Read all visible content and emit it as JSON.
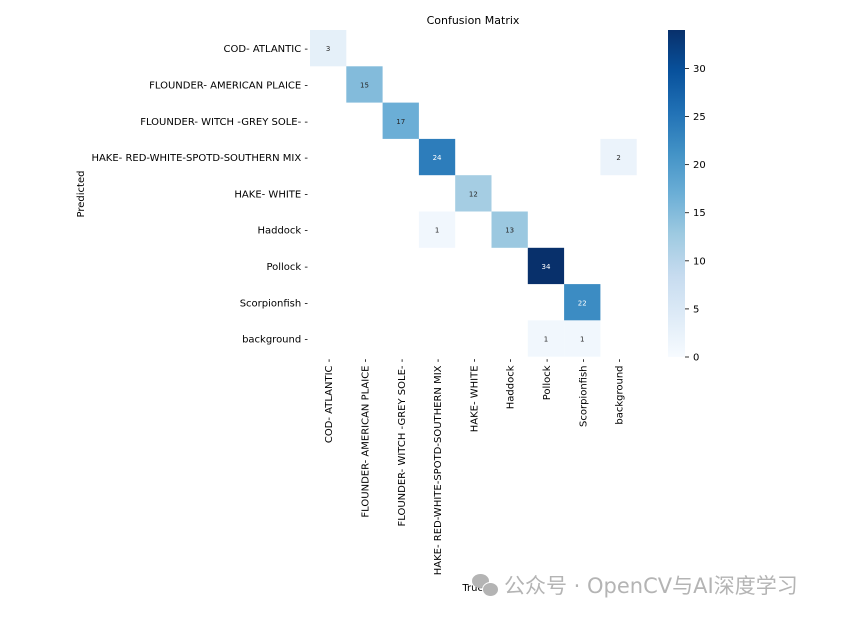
{
  "chart_data": {
    "type": "heatmap",
    "title": "Confusion Matrix",
    "xlabel": "True",
    "ylabel": "Predicted",
    "x_categories": [
      "COD- ATLANTIC",
      "FLOUNDER- AMERICAN PLAICE",
      "FLOUNDER- WITCH -GREY SOLE-",
      "HAKE- RED-WHITE-SPOTD-SOUTHERN MIX",
      "HAKE- WHITE",
      "Haddock",
      "Pollock",
      "Scorpionfish",
      "background"
    ],
    "y_categories": [
      "COD- ATLANTIC",
      "FLOUNDER- AMERICAN PLAICE",
      "FLOUNDER- WITCH -GREY SOLE-",
      "HAKE- RED-WHITE-SPOTD-SOUTHERN MIX",
      "HAKE- WHITE",
      "Haddock",
      "Pollock",
      "Scorpionfish",
      "background"
    ],
    "values": [
      [
        3,
        0,
        0,
        0,
        0,
        0,
        0,
        0,
        0
      ],
      [
        0,
        15,
        0,
        0,
        0,
        0,
        0,
        0,
        0
      ],
      [
        0,
        0,
        17,
        0,
        0,
        0,
        0,
        0,
        0
      ],
      [
        0,
        0,
        0,
        24,
        0,
        0,
        0,
        0,
        2
      ],
      [
        0,
        0,
        0,
        0,
        12,
        0,
        0,
        0,
        0
      ],
      [
        0,
        0,
        0,
        1,
        0,
        13,
        0,
        0,
        0
      ],
      [
        0,
        0,
        0,
        0,
        0,
        0,
        34,
        0,
        0
      ],
      [
        0,
        0,
        0,
        0,
        0,
        0,
        0,
        22,
        0
      ],
      [
        0,
        0,
        0,
        0,
        0,
        0,
        1,
        1,
        0
      ]
    ],
    "zero_cells_blank": true,
    "colormap": "Blues",
    "colorbar": {
      "range": [
        0,
        34
      ],
      "ticks": [
        0,
        5,
        10,
        15,
        20,
        25,
        30
      ]
    }
  },
  "watermark": "公众号 · OpenCV与AI深度学习"
}
